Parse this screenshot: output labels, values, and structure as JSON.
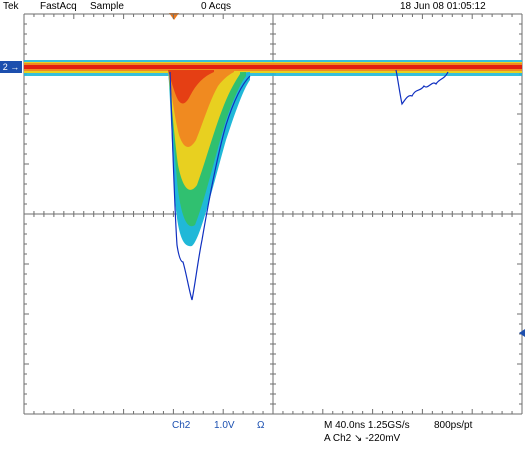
{
  "header": {
    "brand": "Tek",
    "mode": "FastAcq",
    "acq_mode": "Sample",
    "acq_count": "0 Acqs",
    "datetime": "18 Jun 08 01:05:12"
  },
  "channel_marker": {
    "label": "2",
    "arrow": "→"
  },
  "footer": {
    "channel": "Ch2",
    "volts_per_div": "1.0V",
    "coupling": "Ω",
    "timebase": "M 40.0ns 1.25GS/s",
    "resolution": "800ps/pt",
    "trigger_source": "A  Ch2",
    "trigger_slope": "↘",
    "trigger_level": "-220mV"
  },
  "colors": {
    "grid": "#6e6e6e",
    "trace_hot": "#e02010",
    "trace_warm": "#f08a20",
    "trace_mid": "#e8d020",
    "trace_cool": "#30c070",
    "trace_cold": "#20b8d8",
    "trace_outline": "#1030c0",
    "channel_blue": "#1d4fae",
    "trigger_orange": "#f07a1a"
  }
}
